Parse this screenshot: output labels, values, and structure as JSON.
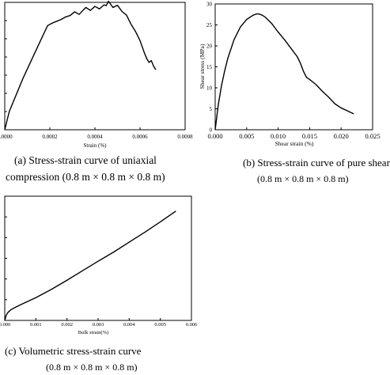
{
  "captions": {
    "a_line1": "(a) Stress-strain curve of uniaxial",
    "a_line2": "compression (0.8 m × 0.8 m × 0.8 m)",
    "b_line1": "(b) Stress-strain curve of pure shear",
    "b_line2": "(0.8 m × 0.8 m × 0.8 m)",
    "c_line1": "(c) Volumetric stress-strain curve",
    "c_line2": "(0.8 m × 0.8 m × 0.8 m)"
  },
  "chart_data": [
    {
      "id": "a",
      "type": "line",
      "title": "",
      "xlabel": "Strain (%)",
      "ylabel": "",
      "xlim": [
        0,
        0.0008
      ],
      "ylim": [
        0,
        35
      ],
      "xticks": [
        0,
        0.0002,
        0.0004,
        0.0006,
        0.0008
      ],
      "xtick_labels": [
        "0.0000",
        "0.0002",
        "0.0004",
        "0.0006",
        "0.0008"
      ],
      "yticks": [
        0,
        5,
        10,
        15,
        20,
        25,
        30,
        35
      ],
      "ytick_labels": [],
      "grid": false,
      "series": [
        {
          "x": [
            0,
            2e-05,
            5e-05,
            8e-05,
            0.00011,
            0.00014,
            0.00017,
            0.00019,
            0.00021,
            0.00023,
            0.00025,
            0.00027,
            0.00029,
            0.00031,
            0.00033,
            0.00035,
            0.00036,
            0.00038,
            0.0004,
            0.00042,
            0.00044,
            0.00045,
            0.00046,
            0.00048,
            0.0005,
            0.00052,
            0.00054,
            0.00056,
            0.00058,
            0.0006,
            0.00062,
            0.00063,
            0.00064,
            0.00065,
            0.00066,
            0.00067
          ],
          "y": [
            0,
            5,
            9.5,
            14,
            18,
            22,
            26,
            28.6,
            29.3,
            29.8,
            30.3,
            31,
            31.4,
            32.4,
            31.7,
            33,
            33.6,
            32.8,
            33.9,
            33.2,
            34.3,
            34.1,
            35.3,
            33.6,
            34.2,
            32.5,
            31.5,
            29,
            27,
            24.5,
            21,
            19.5,
            18.5,
            19,
            17.5,
            16.5
          ]
        }
      ]
    },
    {
      "id": "b",
      "type": "line",
      "title": "",
      "xlabel": "Shear strain (%)",
      "ylabel": "Shear stress (MPa)",
      "xlim": [
        0,
        0.025
      ],
      "ylim": [
        0,
        30
      ],
      "xticks": [
        0,
        0.005,
        0.01,
        0.015,
        0.02,
        0.025
      ],
      "xtick_labels": [
        "0.000",
        "0.005",
        "0.010",
        "0.015",
        "0.020",
        "0.025"
      ],
      "yticks": [
        0,
        5,
        10,
        15,
        20,
        25,
        30
      ],
      "ytick_labels": [
        "0",
        "5",
        "10",
        "15",
        "20",
        "25",
        "30"
      ],
      "grid": false,
      "series": [
        {
          "x": [
            0,
            0.0005,
            0.001,
            0.0015,
            0.002,
            0.003,
            0.004,
            0.005,
            0.006,
            0.0065,
            0.007,
            0.0075,
            0.008,
            0.009,
            0.01,
            0.011,
            0.012,
            0.013,
            0.0135,
            0.014,
            0.0145,
            0.015,
            0.016,
            0.017,
            0.018,
            0.019,
            0.02,
            0.021,
            0.022
          ],
          "y": [
            0,
            6,
            10.5,
            14,
            17,
            21.5,
            24.5,
            26.3,
            27.3,
            27.6,
            27.6,
            27.3,
            26.8,
            25.3,
            23.3,
            21.5,
            19.5,
            17.5,
            16,
            14,
            12.5,
            12,
            10.8,
            9.2,
            7.8,
            6.2,
            5.2,
            4.5,
            3.8
          ]
        }
      ]
    },
    {
      "id": "c",
      "type": "line",
      "title": "",
      "xlabel": "Bulk strain(%)",
      "ylabel": "",
      "xlim": [
        0,
        0.006
      ],
      "ylim": [
        0,
        30
      ],
      "xticks": [
        0,
        0.001,
        0.002,
        0.003,
        0.004,
        0.005,
        0.006
      ],
      "xtick_labels": [
        "0.000",
        "0.001",
        "0.002",
        "0.003",
        "0.004",
        "0.005",
        "0.006"
      ],
      "yticks": [
        0,
        5,
        10,
        15,
        20,
        25,
        30
      ],
      "ytick_labels": [],
      "grid": false,
      "series": [
        {
          "x": [
            0,
            5e-05,
            0.0001,
            0.0002,
            0.0004,
            0.0006,
            0.001,
            0.0015,
            0.002,
            0.0025,
            0.003,
            0.0035,
            0.004,
            0.0045,
            0.005,
            0.0055
          ],
          "y": [
            0,
            1.3,
            1.9,
            2.6,
            3.4,
            4.1,
            5.5,
            7.5,
            9.7,
            12,
            14.3,
            16.5,
            18.9,
            21.3,
            23.8,
            26.4
          ]
        }
      ]
    }
  ]
}
